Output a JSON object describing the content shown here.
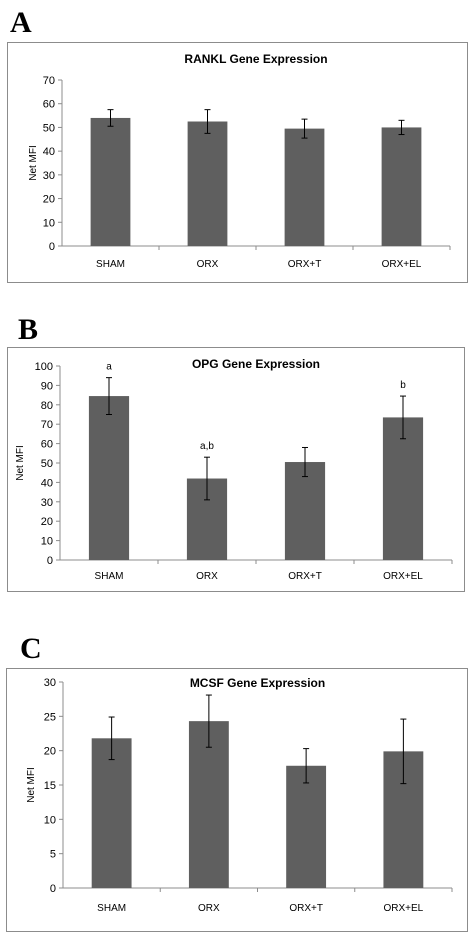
{
  "panels": [
    {
      "letter": "A"
    },
    {
      "letter": "B"
    },
    {
      "letter": "C"
    }
  ],
  "chart_data": [
    {
      "type": "bar",
      "title": "RANKL Gene Expression",
      "xlabel": "",
      "ylabel": "Net MFI",
      "categories": [
        "SHAM",
        "ORX",
        "ORX+T",
        "ORX+EL"
      ],
      "values": [
        54,
        52.5,
        49.5,
        50
      ],
      "errors": [
        3.5,
        5,
        4,
        3
      ],
      "annotations": [
        "",
        "",
        "",
        ""
      ],
      "ylim": [
        0,
        70
      ],
      "yticks": [
        0,
        10,
        20,
        30,
        40,
        50,
        60,
        70
      ],
      "bar_color": "#5f5f5f",
      "grid": false
    },
    {
      "type": "bar",
      "title": "OPG Gene Expression",
      "xlabel": "",
      "ylabel": "Net MFI",
      "categories": [
        "SHAM",
        "ORX",
        "ORX+T",
        "ORX+EL"
      ],
      "values": [
        84.5,
        42,
        50.5,
        73.5
      ],
      "errors": [
        9.5,
        11,
        7.5,
        11
      ],
      "annotations": [
        "a",
        "a,b",
        "",
        "b"
      ],
      "ylim": [
        0,
        100
      ],
      "yticks": [
        0,
        10,
        20,
        30,
        40,
        50,
        60,
        70,
        80,
        90,
        100
      ],
      "bar_color": "#5f5f5f",
      "grid": false
    },
    {
      "type": "bar",
      "title": "MCSF Gene Expression",
      "xlabel": "",
      "ylabel": "Net MFI",
      "categories": [
        "SHAM",
        "ORX",
        "ORX+T",
        "ORX+EL"
      ],
      "values": [
        21.8,
        24.3,
        17.8,
        19.9
      ],
      "errors": [
        3.1,
        3.8,
        2.5,
        4.7
      ],
      "annotations": [
        "",
        "",
        "",
        ""
      ],
      "ylim": [
        0,
        30
      ],
      "yticks": [
        0,
        5,
        10,
        15,
        20,
        25,
        30
      ],
      "bar_color": "#5f5f5f",
      "grid": false
    }
  ]
}
